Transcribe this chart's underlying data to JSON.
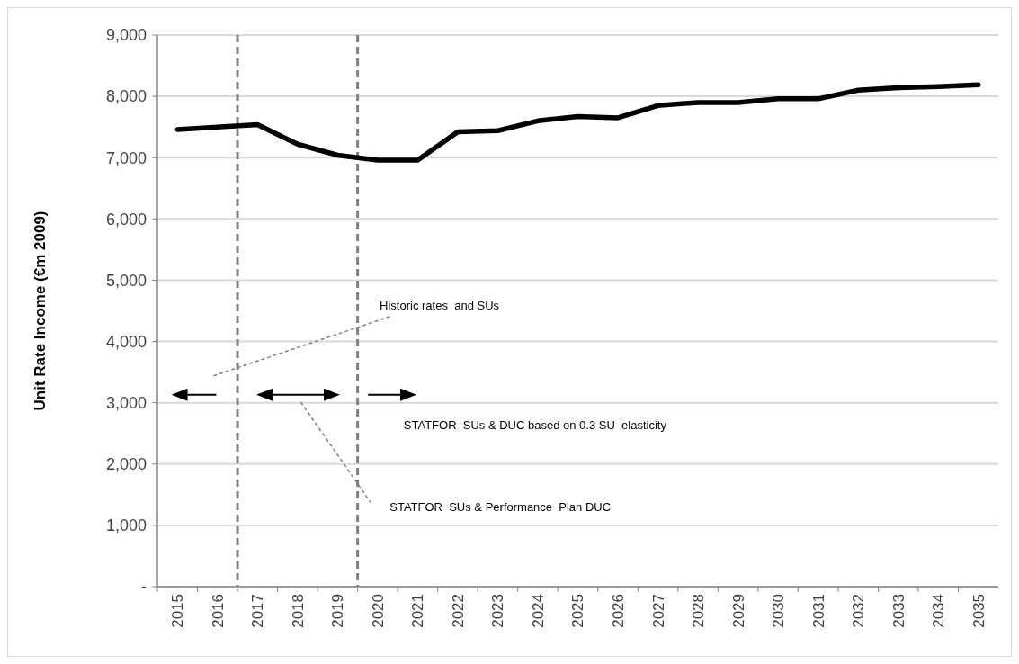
{
  "chart_data": {
    "type": "line",
    "ylabel": "Unit Rate Income (€m 2009)",
    "x": [
      2015,
      2016,
      2017,
      2018,
      2019,
      2020,
      2021,
      2022,
      2023,
      2024,
      2025,
      2026,
      2027,
      2028,
      2029,
      2030,
      2031,
      2032,
      2033,
      2034,
      2035
    ],
    "series": [
      {
        "color": "#000000",
        "values": [
          7460,
          7500,
          7540,
          7220,
          7040,
          6960,
          6960,
          7420,
          7440,
          7600,
          7670,
          7650,
          7850,
          7900,
          7900,
          7960,
          7960,
          8100,
          8140,
          8160,
          8190
        ]
      }
    ],
    "xlim": [
      2014.5,
      2035.5
    ],
    "xticks": [
      2015,
      2016,
      2017,
      2018,
      2019,
      2020,
      2021,
      2022,
      2023,
      2024,
      2025,
      2026,
      2027,
      2028,
      2029,
      2030,
      2031,
      2032,
      2033,
      2034,
      2035
    ],
    "ylim": [
      0,
      9000
    ],
    "yticks": [
      {
        "value": 0,
        "label": "-"
      },
      {
        "value": 1000,
        "label": "1,000"
      },
      {
        "value": 2000,
        "label": "2,000"
      },
      {
        "value": 3000,
        "label": "3,000"
      },
      {
        "value": 4000,
        "label": "4,000"
      },
      {
        "value": 5000,
        "label": "5,000"
      },
      {
        "value": 6000,
        "label": "6,000"
      },
      {
        "value": 7000,
        "label": "7,000"
      },
      {
        "value": 8000,
        "label": "8,000"
      },
      {
        "value": 9000,
        "label": "9,000"
      }
    ],
    "grid": "y",
    "marker": "none",
    "line_style": "solid",
    "ref_lines": [
      {
        "axis": "x",
        "value": 2016.5,
        "color": "#808080",
        "line_style": "dashed"
      },
      {
        "axis": "x",
        "value": 2019.5,
        "color": "#808080",
        "line_style": "dashed"
      }
    ],
    "annotations": [
      "Historic rates  and SUs",
      "STATFOR  SUs & DUC based on 0.3 SU  elasticity",
      "STATFOR  SUs & Performance  Plan DUC"
    ]
  }
}
